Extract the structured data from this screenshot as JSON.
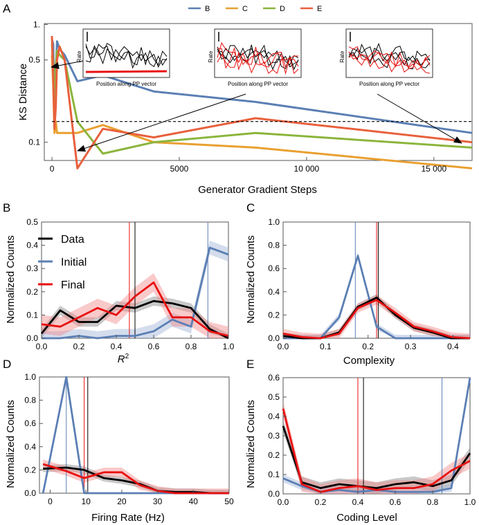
{
  "colors": {
    "B": "#5b7fb4",
    "C": "#e8a030",
    "D": "#8bb53c",
    "E": "#e8603c",
    "data": "#000000",
    "initial": "#5b7fb4",
    "final": "#e81010"
  },
  "chart_data": [
    {
      "id": "A",
      "panel_label": "A",
      "type": "line",
      "xlabel": "Generator Gradient Steps",
      "ylabel": "KS Distance",
      "xlim": [
        -300,
        16500
      ],
      "ylim": [
        0.07,
        1.02
      ],
      "xticks": [
        0,
        5000,
        10000,
        15000
      ],
      "xtick_labels": [
        "0",
        "5000",
        "10 000",
        "15 000"
      ],
      "yticks": [
        0.1,
        0.5,
        1
      ],
      "ytick_labels": [
        "0.1",
        "0.5",
        "1."
      ],
      "legend": [
        "B",
        "C",
        "D",
        "E"
      ],
      "threshold": 0.15,
      "series": [
        {
          "name": "B",
          "color_key": "B",
          "x": [
            0,
            50,
            100,
            150,
            200,
            300,
            500,
            1000,
            2000,
            4000,
            8000,
            16500
          ],
          "y": [
            0.75,
            0.68,
            0.15,
            0.4,
            0.72,
            0.62,
            0.55,
            0.33,
            0.37,
            0.27,
            0.22,
            0.12
          ]
        },
        {
          "name": "C",
          "color_key": "C",
          "x": [
            0,
            50,
            100,
            150,
            200,
            300,
            500,
            1000,
            2000,
            4000,
            8000,
            16500
          ],
          "y": [
            0.55,
            0.3,
            0.12,
            0.15,
            0.12,
            0.12,
            0.12,
            0.12,
            0.14,
            0.1,
            0.09,
            0.06
          ]
        },
        {
          "name": "D",
          "color_key": "D",
          "x": [
            0,
            50,
            100,
            150,
            200,
            300,
            500,
            1000,
            2000,
            4000,
            8000,
            16500
          ],
          "y": [
            0.68,
            0.45,
            0.16,
            0.45,
            0.6,
            0.55,
            0.5,
            0.15,
            0.08,
            0.1,
            0.12,
            0.09
          ]
        },
        {
          "name": "E",
          "color_key": "E",
          "x": [
            0,
            50,
            100,
            150,
            200,
            300,
            500,
            1000,
            2000,
            4000,
            8000,
            16500
          ],
          "y": [
            0.8,
            0.35,
            0.13,
            0.2,
            0.5,
            0.65,
            0.5,
            0.06,
            0.13,
            0.11,
            0.16,
            0.1
          ]
        }
      ],
      "insets": {
        "xlabel": "Position along PP vector",
        "ylabel": "Rate"
      }
    },
    {
      "id": "B",
      "panel_label": "B",
      "type": "line",
      "xlabel": "R",
      "xlabel_superscript": "2",
      "ylabel": "Normalized Counts",
      "xlim": [
        0,
        1
      ],
      "ylim": [
        0,
        0.5
      ],
      "xticks": [
        0,
        0.2,
        0.4,
        0.6,
        0.8,
        1.0
      ],
      "xtick_labels": [
        "0.0",
        "0.2",
        "0.4",
        "0.6",
        "0.8",
        "1.0"
      ],
      "yticks": [
        0,
        0.1,
        0.2,
        0.3,
        0.4,
        0.5
      ],
      "ytick_labels": [
        "0.0",
        "0.1",
        "0.2",
        "0.3",
        "0.4",
        "0.5"
      ],
      "legend": [
        "Data",
        "Initial",
        "Final"
      ],
      "vlines": [
        {
          "series": "Data",
          "x": 0.5
        },
        {
          "series": "Initial",
          "x": 0.89
        },
        {
          "series": "Final",
          "x": 0.47
        }
      ],
      "series": [
        {
          "name": "Data",
          "color_key": "data",
          "x": [
            0,
            0.1,
            0.2,
            0.3,
            0.4,
            0.5,
            0.6,
            0.7,
            0.8,
            0.9,
            1.0
          ],
          "y": [
            0.02,
            0.12,
            0.07,
            0.07,
            0.14,
            0.13,
            0.16,
            0.15,
            0.13,
            0.04,
            0.0
          ],
          "band": 0.02
        },
        {
          "name": "Initial",
          "color_key": "initial",
          "x": [
            0,
            0.1,
            0.2,
            0.3,
            0.4,
            0.5,
            0.6,
            0.7,
            0.8,
            0.9,
            1.0
          ],
          "y": [
            0.0,
            0.0,
            0.01,
            0.0,
            0.01,
            0.01,
            0.03,
            0.08,
            0.05,
            0.39,
            0.36
          ],
          "band": 0.03
        },
        {
          "name": "Final",
          "color_key": "final",
          "x": [
            0,
            0.1,
            0.2,
            0.3,
            0.4,
            0.5,
            0.6,
            0.7,
            0.8,
            0.9,
            1.0
          ],
          "y": [
            0.06,
            0.05,
            0.09,
            0.13,
            0.1,
            0.18,
            0.24,
            0.09,
            0.09,
            0.03,
            0.01
          ],
          "band": 0.04
        }
      ]
    },
    {
      "id": "C",
      "panel_label": "C",
      "type": "line",
      "xlabel": "Complexity",
      "ylabel": "Normalized Counts",
      "xlim": [
        0,
        0.44
      ],
      "ylim": [
        0,
        1
      ],
      "xticks": [
        0,
        0.1,
        0.2,
        0.3,
        0.4
      ],
      "xtick_labels": [
        "0.0",
        "0.1",
        "0.2",
        "0.3",
        "0.4"
      ],
      "yticks": [
        0,
        0.2,
        0.4,
        0.6,
        0.8,
        1.0
      ],
      "ytick_labels": [
        "0.0",
        "0.2",
        "0.4",
        "0.6",
        "0.8",
        "1.0"
      ],
      "vlines": [
        {
          "series": "Data",
          "x": 0.224
        },
        {
          "series": "Initial",
          "x": 0.17
        },
        {
          "series": "Final",
          "x": 0.22
        }
      ],
      "series": [
        {
          "name": "Data",
          "color_key": "data",
          "x": [
            0,
            0.044,
            0.088,
            0.132,
            0.176,
            0.22,
            0.264,
            0.308,
            0.352,
            0.396,
            0.44
          ],
          "y": [
            0.02,
            0.0,
            0.0,
            0.05,
            0.27,
            0.35,
            0.2,
            0.09,
            0.05,
            0.0,
            0.0
          ],
          "band": 0.03
        },
        {
          "name": "Initial",
          "color_key": "initial",
          "x": [
            0,
            0.044,
            0.088,
            0.132,
            0.176,
            0.22,
            0.264,
            0.308,
            0.352,
            0.396,
            0.44
          ],
          "y": [
            0.0,
            0.0,
            0.0,
            0.18,
            0.71,
            0.1,
            0.0,
            0.0,
            0.0,
            0.0,
            0.0
          ],
          "band": 0.03
        },
        {
          "name": "Final",
          "color_key": "final",
          "x": [
            0,
            0.044,
            0.088,
            0.132,
            0.176,
            0.22,
            0.264,
            0.308,
            0.352,
            0.396,
            0.44
          ],
          "y": [
            0.04,
            0.01,
            0.0,
            0.04,
            0.26,
            0.33,
            0.22,
            0.1,
            0.06,
            0.01,
            0.0
          ],
          "band": 0.04
        }
      ]
    },
    {
      "id": "D",
      "panel_label": "D",
      "type": "line",
      "xlabel": "Firing Rate (Hz)",
      "ylabel": "Normalized Counts",
      "xlim": [
        -3,
        50
      ],
      "ylim": [
        0,
        1
      ],
      "xticks": [
        0,
        10,
        20,
        30,
        40,
        50
      ],
      "xtick_labels": [
        "0",
        "10",
        "20",
        "30",
        "40",
        "50"
      ],
      "yticks": [
        0,
        0.2,
        0.4,
        0.6,
        0.8,
        1.0
      ],
      "ytick_labels": [
        "0.0",
        "0.2",
        "0.4",
        "0.6",
        "0.8",
        "1.0"
      ],
      "vlines": [
        {
          "series": "Data",
          "x": 10.5
        },
        {
          "series": "Initial",
          "x": 4.5
        },
        {
          "series": "Final",
          "x": 9.5
        }
      ],
      "series": [
        {
          "name": "Data",
          "color_key": "data",
          "x": [
            -2,
            4.5,
            9.5,
            15,
            20,
            25,
            30,
            35,
            40,
            45,
            50
          ],
          "y": [
            0.21,
            0.22,
            0.2,
            0.13,
            0.11,
            0.08,
            0.02,
            0.01,
            0.01,
            0.0,
            0.0
          ],
          "band": 0.03
        },
        {
          "name": "Initial",
          "color_key": "initial",
          "x": [
            -2,
            4.5,
            9.5,
            15,
            20,
            25,
            30,
            35,
            40,
            45,
            50
          ],
          "y": [
            0.0,
            1.0,
            0.0,
            0.0,
            0.0,
            0.0,
            0.0,
            0.0,
            0.0,
            0.0,
            0.0
          ],
          "band": 0.0
        },
        {
          "name": "Final",
          "color_key": "final",
          "x": [
            -2,
            4.5,
            9.5,
            15,
            20,
            25,
            30,
            35,
            40,
            45,
            50
          ],
          "y": [
            0.25,
            0.19,
            0.13,
            0.18,
            0.18,
            0.07,
            0.02,
            0.0,
            0.0,
            0.0,
            0.0
          ],
          "band": 0.04
        }
      ]
    },
    {
      "id": "E",
      "panel_label": "E",
      "type": "line",
      "xlabel": "Coding Level",
      "ylabel": "Normalized Counts",
      "xlim": [
        0,
        1
      ],
      "ylim": [
        0,
        0.6
      ],
      "xticks": [
        0,
        0.2,
        0.4,
        0.6,
        0.8,
        1.0
      ],
      "xtick_labels": [
        "0.0",
        "0.2",
        "0.4",
        "0.6",
        "0.8",
        "1.0"
      ],
      "yticks": [
        0,
        0.1,
        0.2,
        0.3,
        0.4,
        0.5,
        0.6
      ],
      "ytick_labels": [
        "0.0",
        "0.1",
        "0.2",
        "0.3",
        "0.4",
        "0.5",
        "0.6"
      ],
      "vlines": [
        {
          "series": "Data",
          "x": 0.43
        },
        {
          "series": "Initial",
          "x": 0.85
        },
        {
          "series": "Final",
          "x": 0.4
        }
      ],
      "series": [
        {
          "name": "Data",
          "color_key": "data",
          "x": [
            0,
            0.1,
            0.2,
            0.3,
            0.4,
            0.5,
            0.6,
            0.7,
            0.8,
            0.9,
            1.0
          ],
          "y": [
            0.35,
            0.06,
            0.03,
            0.05,
            0.04,
            0.03,
            0.05,
            0.06,
            0.04,
            0.07,
            0.21
          ],
          "band": 0.03
        },
        {
          "name": "Initial",
          "color_key": "initial",
          "x": [
            0,
            0.1,
            0.2,
            0.3,
            0.4,
            0.5,
            0.6,
            0.7,
            0.8,
            0.9,
            1.0
          ],
          "y": [
            0.08,
            0.04,
            0.01,
            0.02,
            0.01,
            0.02,
            0.01,
            0.01,
            0.01,
            0.03,
            0.6
          ],
          "band": 0.02
        },
        {
          "name": "Final",
          "color_key": "final",
          "x": [
            0,
            0.1,
            0.2,
            0.3,
            0.4,
            0.5,
            0.6,
            0.7,
            0.8,
            0.9,
            1.0
          ],
          "y": [
            0.44,
            0.05,
            0.01,
            0.03,
            0.04,
            0.02,
            0.03,
            0.03,
            0.05,
            0.12,
            0.17
          ],
          "band": 0.04
        }
      ]
    }
  ]
}
